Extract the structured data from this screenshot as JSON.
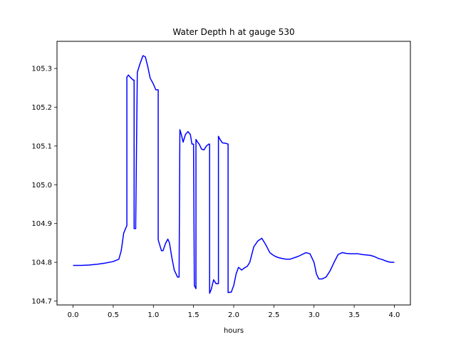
{
  "chart_data": {
    "type": "line",
    "title": "Water Depth h at gauge 530",
    "xlabel": "hours",
    "ylabel": "",
    "xlim": [
      -0.2,
      4.2
    ],
    "ylim": [
      104.69,
      105.37
    ],
    "xticks": [
      0.0,
      0.5,
      1.0,
      1.5,
      2.0,
      2.5,
      3.0,
      3.5,
      4.0
    ],
    "xtick_labels": [
      "0.0",
      "0.5",
      "1.0",
      "1.5",
      "2.0",
      "2.5",
      "3.0",
      "3.5",
      "4.0"
    ],
    "yticks": [
      104.7,
      104.8,
      104.9,
      105.0,
      105.1,
      105.2,
      105.3
    ],
    "ytick_labels": [
      "104.7",
      "104.8",
      "104.9",
      "105.0",
      "105.1",
      "105.2",
      "105.3"
    ],
    "grid": false,
    "series": [
      {
        "color": "#0000ff",
        "x": [
          0.0,
          0.1,
          0.2,
          0.3,
          0.4,
          0.5,
          0.57,
          0.6,
          0.63,
          0.67,
          0.67,
          0.69,
          0.71,
          0.75,
          0.76,
          0.76,
          0.78,
          0.78,
          0.8,
          0.83,
          0.87,
          0.9,
          0.93,
          0.96,
          1.0,
          1.03,
          1.06,
          1.06,
          1.1,
          1.12,
          1.15,
          1.18,
          1.2,
          1.23,
          1.26,
          1.3,
          1.32,
          1.33,
          1.35,
          1.37,
          1.4,
          1.43,
          1.46,
          1.48,
          1.5,
          1.51,
          1.53,
          1.53,
          1.55,
          1.55,
          1.57,
          1.6,
          1.63,
          1.66,
          1.69,
          1.7,
          1.7,
          1.72,
          1.75,
          1.78,
          1.8,
          1.81,
          1.81,
          1.83,
          1.86,
          1.9,
          1.93,
          1.93,
          1.97,
          2.0,
          2.03,
          2.06,
          2.1,
          2.13,
          2.17,
          2.2,
          2.25,
          2.3,
          2.35,
          2.4,
          2.45,
          2.48,
          2.52,
          2.56,
          2.6,
          2.65,
          2.7,
          2.8,
          2.9,
          2.95,
          3.0,
          3.03,
          3.06,
          3.1,
          3.15,
          3.2,
          3.25,
          3.3,
          3.35,
          3.4,
          3.45,
          3.5,
          3.55,
          3.6,
          3.7,
          3.75,
          3.8,
          3.85,
          3.9,
          3.95,
          4.0
        ],
        "y": [
          104.792,
          104.792,
          104.793,
          104.795,
          104.798,
          104.802,
          104.808,
          104.83,
          104.875,
          104.895,
          105.278,
          105.283,
          105.278,
          105.27,
          105.27,
          104.887,
          104.887,
          104.9,
          105.29,
          105.31,
          105.333,
          105.33,
          105.305,
          105.275,
          105.26,
          105.245,
          105.245,
          104.858,
          104.83,
          104.83,
          104.848,
          104.86,
          104.85,
          104.812,
          104.78,
          104.762,
          104.762,
          105.142,
          105.128,
          105.11,
          105.13,
          105.137,
          105.13,
          105.105,
          105.105,
          104.74,
          104.732,
          105.117,
          105.11,
          105.11,
          105.105,
          105.092,
          105.09,
          105.1,
          105.105,
          105.105,
          104.72,
          104.73,
          104.755,
          104.745,
          104.745,
          104.745,
          105.125,
          105.117,
          105.108,
          105.107,
          105.105,
          104.722,
          104.723,
          104.74,
          104.77,
          104.787,
          104.78,
          104.785,
          104.79,
          104.8,
          104.84,
          104.855,
          104.862,
          104.845,
          104.825,
          104.82,
          104.815,
          104.812,
          104.81,
          104.808,
          104.808,
          104.815,
          104.825,
          104.822,
          104.8,
          104.77,
          104.757,
          104.757,
          104.762,
          104.778,
          104.8,
          104.82,
          104.825,
          104.823,
          104.822,
          104.822,
          104.822,
          104.82,
          104.818,
          104.815,
          104.81,
          104.807,
          104.803,
          104.8,
          104.8
        ]
      }
    ]
  }
}
